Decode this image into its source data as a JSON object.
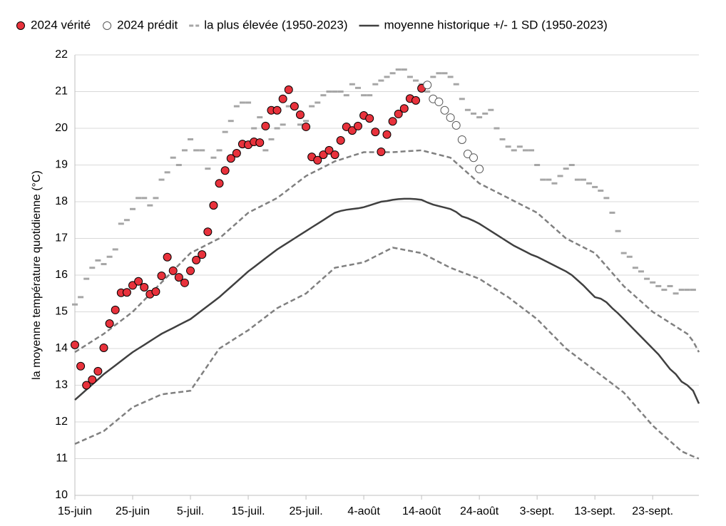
{
  "chart_data": {
    "type": "line",
    "y_label": "la moyenne température quotidienne (°C)",
    "categories": [
      "15-juin",
      null,
      null,
      null,
      null,
      null,
      null,
      null,
      null,
      null,
      "25-juin",
      null,
      null,
      null,
      null,
      null,
      null,
      null,
      null,
      null,
      "5-juil.",
      null,
      null,
      null,
      null,
      null,
      null,
      null,
      null,
      null,
      "15-juil.",
      null,
      null,
      null,
      null,
      null,
      null,
      null,
      null,
      null,
      "25-juil.",
      null,
      null,
      null,
      null,
      null,
      null,
      null,
      null,
      null,
      "4-août",
      null,
      null,
      null,
      null,
      null,
      null,
      null,
      null,
      null,
      "14-août",
      null,
      null,
      null,
      null,
      null,
      null,
      null,
      null,
      null,
      "24-août",
      null,
      null,
      null,
      null,
      null,
      null,
      null,
      null,
      null,
      "3-sept.",
      null,
      null,
      null,
      null,
      null,
      null,
      null,
      null,
      null,
      "13-sept.",
      null,
      null,
      null,
      null,
      null,
      null,
      null,
      null,
      null,
      "23-sept.",
      null,
      null,
      null,
      null,
      null,
      null,
      null,
      null
    ],
    "ylim": [
      10,
      22
    ],
    "yticks": [
      10,
      11,
      12,
      13,
      14,
      15,
      16,
      17,
      18,
      19,
      20,
      21,
      22
    ],
    "grid": true,
    "series": [
      {
        "name": "2024 vérité",
        "style": "dot",
        "color": "#e8323c",
        "values": [
          14.1,
          13.52,
          13.0,
          13.15,
          13.38,
          14.02,
          14.68,
          15.05,
          15.52,
          15.53,
          15.72,
          15.83,
          15.67,
          15.48,
          15.55,
          15.98,
          16.49,
          16.12,
          15.94,
          15.79,
          16.12,
          16.41,
          16.56,
          17.18,
          17.9,
          18.5,
          18.85,
          19.18,
          19.32,
          19.57,
          19.55,
          19.63,
          19.61,
          20.06,
          20.49,
          20.49,
          20.8,
          21.05,
          20.6,
          20.37,
          20.04,
          19.22,
          19.13,
          19.28,
          19.4,
          19.28,
          19.67,
          20.04,
          19.94,
          20.06,
          20.35,
          20.27,
          19.9,
          19.36,
          19.83,
          20.19,
          20.39,
          20.54,
          20.81,
          20.76,
          21.09,
          null,
          null,
          null,
          null,
          null,
          null,
          null,
          null,
          null,
          null,
          null,
          null,
          null,
          null,
          null,
          null,
          null,
          null,
          null,
          null,
          null,
          null,
          null,
          null,
          null,
          null,
          null,
          null,
          null,
          null,
          null,
          null,
          null,
          null,
          null,
          null,
          null,
          null,
          null,
          null,
          null,
          null,
          null,
          null,
          null,
          null,
          null,
          null
        ]
      },
      {
        "name": "2024 prédit",
        "style": "hollow",
        "color": "#ffffff",
        "values": [
          null,
          null,
          null,
          null,
          null,
          null,
          null,
          null,
          null,
          null,
          null,
          null,
          null,
          null,
          null,
          null,
          null,
          null,
          null,
          null,
          null,
          null,
          null,
          null,
          null,
          null,
          null,
          null,
          null,
          null,
          null,
          null,
          null,
          null,
          null,
          null,
          null,
          null,
          null,
          null,
          null,
          null,
          null,
          null,
          null,
          null,
          null,
          null,
          null,
          null,
          null,
          null,
          null,
          null,
          null,
          null,
          null,
          null,
          null,
          null,
          null,
          21.18,
          20.8,
          20.72,
          20.49,
          20.29,
          20.08,
          19.69,
          19.3,
          19.2,
          18.89,
          null,
          null,
          null,
          null,
          null,
          null,
          null,
          null,
          null,
          null,
          null,
          null,
          null,
          null,
          null,
          null,
          null,
          null,
          null,
          null,
          null,
          null,
          null,
          null,
          null,
          null,
          null,
          null,
          null,
          null,
          null,
          null,
          null,
          null,
          null,
          null,
          null,
          null
        ]
      },
      {
        "name": "la plus élevée (1950-2023)",
        "style": "dash",
        "color": "#a6a6a6",
        "values": [
          15.2,
          15.4,
          15.9,
          16.2,
          16.4,
          16.3,
          16.5,
          16.7,
          17.4,
          17.5,
          17.8,
          18.1,
          18.1,
          17.9,
          18.1,
          18.6,
          18.8,
          19.2,
          19.0,
          19.4,
          19.7,
          19.4,
          19.4,
          18.9,
          19.2,
          19.4,
          19.9,
          20.2,
          20.6,
          20.7,
          20.7,
          20.0,
          20.3,
          19.4,
          19.7,
          20.0,
          20.1,
          20.6,
          20.6,
          20.1,
          20.2,
          20.6,
          20.7,
          20.9,
          21.0,
          21.0,
          21.0,
          20.9,
          21.2,
          21.1,
          20.9,
          20.9,
          21.2,
          21.3,
          21.4,
          21.5,
          21.6,
          21.6,
          21.4,
          21.3,
          21.2,
          21.0,
          21.4,
          21.5,
          21.5,
          21.4,
          21.2,
          20.8,
          20.5,
          20.4,
          20.3,
          20.4,
          20.5,
          20.0,
          19.7,
          19.5,
          19.4,
          19.5,
          19.4,
          19.4,
          19.0,
          18.6,
          18.6,
          18.5,
          18.7,
          18.9,
          19.0,
          18.6,
          18.6,
          18.5,
          18.4,
          18.3,
          18.1,
          17.7,
          17.2,
          16.6,
          16.5,
          16.2,
          16.1,
          15.9,
          15.8,
          15.7,
          15.6,
          15.7,
          15.5,
          15.6,
          15.6,
          15.6,
          null
        ]
      },
      {
        "name": "moyenne historique +/- 1 SD (1950-2023)",
        "style": "line",
        "color": "#404040",
        "band_color": "#808080",
        "values": [
          12.6,
          12.74,
          12.88,
          13.02,
          13.16,
          13.3,
          13.42,
          13.54,
          13.66,
          13.78,
          13.9,
          14.0,
          14.1,
          14.2,
          14.3,
          14.4,
          14.48,
          14.56,
          14.64,
          14.72,
          14.8,
          14.92,
          15.04,
          15.16,
          15.28,
          15.4,
          15.54,
          15.68,
          15.82,
          15.96,
          16.1,
          16.22,
          16.34,
          16.46,
          16.58,
          16.7,
          16.8,
          16.9,
          17.0,
          17.1,
          17.2,
          17.3,
          17.4,
          17.5,
          17.6,
          17.7,
          17.75,
          17.78,
          17.8,
          17.82,
          17.85,
          17.9,
          17.95,
          18.0,
          18.02,
          18.05,
          18.07,
          18.08,
          18.08,
          18.07,
          18.05,
          17.98,
          17.92,
          17.88,
          17.84,
          17.8,
          17.72,
          17.6,
          17.55,
          17.48,
          17.4,
          17.3,
          17.2,
          17.1,
          17.0,
          16.9,
          16.8,
          16.72,
          16.64,
          16.56,
          16.5,
          16.42,
          16.34,
          16.26,
          16.18,
          16.1,
          16.0,
          15.86,
          15.72,
          15.56,
          15.4,
          15.36,
          15.26,
          15.1,
          14.96,
          14.8,
          14.64,
          14.48,
          14.32,
          14.16,
          14.0,
          13.84,
          13.64,
          13.44,
          13.3,
          13.1,
          13.0,
          12.85,
          12.5
        ],
        "upper": [
          13.9,
          14.0,
          14.1,
          14.2,
          14.3,
          14.4,
          14.52,
          14.64,
          14.76,
          14.88,
          15.0,
          15.16,
          15.32,
          15.48,
          15.64,
          15.8,
          15.96,
          16.12,
          16.28,
          16.44,
          16.6,
          16.68,
          16.76,
          16.84,
          16.92,
          17.0,
          17.14,
          17.28,
          17.42,
          17.56,
          17.7,
          17.78,
          17.86,
          17.94,
          18.02,
          18.1,
          18.22,
          18.34,
          18.46,
          18.58,
          18.7,
          18.78,
          18.86,
          18.94,
          19.02,
          19.1,
          19.15,
          19.2,
          19.25,
          19.3,
          19.35,
          19.35,
          19.35,
          19.35,
          19.35,
          19.35,
          19.36,
          19.37,
          19.38,
          19.39,
          19.4,
          19.36,
          19.32,
          19.28,
          19.24,
          19.2,
          19.06,
          18.92,
          18.78,
          18.64,
          18.5,
          18.42,
          18.34,
          18.26,
          18.18,
          18.1,
          18.02,
          17.94,
          17.86,
          17.78,
          17.7,
          17.56,
          17.42,
          17.28,
          17.14,
          17.0,
          16.92,
          16.84,
          16.76,
          16.68,
          16.6,
          16.42,
          16.24,
          16.06,
          15.88,
          15.7,
          15.56,
          15.42,
          15.28,
          15.14,
          15.0,
          14.9,
          14.8,
          14.7,
          14.6,
          14.5,
          14.4,
          14.2,
          13.9
        ],
        "lower": [
          11.4,
          11.47,
          11.54,
          11.61,
          11.68,
          11.75,
          11.88,
          12.01,
          12.14,
          12.27,
          12.4,
          12.47,
          12.54,
          12.61,
          12.68,
          12.75,
          12.77,
          12.79,
          12.81,
          12.83,
          12.85,
          13.08,
          13.31,
          13.54,
          13.77,
          14.0,
          14.1,
          14.2,
          14.3,
          14.4,
          14.5,
          14.62,
          14.74,
          14.86,
          14.98,
          15.1,
          15.18,
          15.26,
          15.34,
          15.42,
          15.5,
          15.64,
          15.78,
          15.92,
          16.06,
          16.2,
          16.23,
          16.26,
          16.29,
          16.32,
          16.35,
          16.43,
          16.51,
          16.59,
          16.67,
          16.75,
          16.72,
          16.69,
          16.66,
          16.63,
          16.6,
          16.52,
          16.44,
          16.36,
          16.28,
          16.2,
          16.14,
          16.08,
          16.02,
          15.96,
          15.9,
          15.8,
          15.7,
          15.6,
          15.5,
          15.4,
          15.28,
          15.16,
          15.04,
          14.92,
          14.8,
          14.64,
          14.48,
          14.32,
          14.16,
          14.0,
          13.88,
          13.76,
          13.64,
          13.52,
          13.4,
          13.28,
          13.16,
          13.04,
          12.92,
          12.8,
          12.62,
          12.44,
          12.26,
          12.08,
          11.9,
          11.76,
          11.62,
          11.48,
          11.34,
          11.2,
          11.13,
          11.06,
          11.0
        ]
      }
    ]
  }
}
